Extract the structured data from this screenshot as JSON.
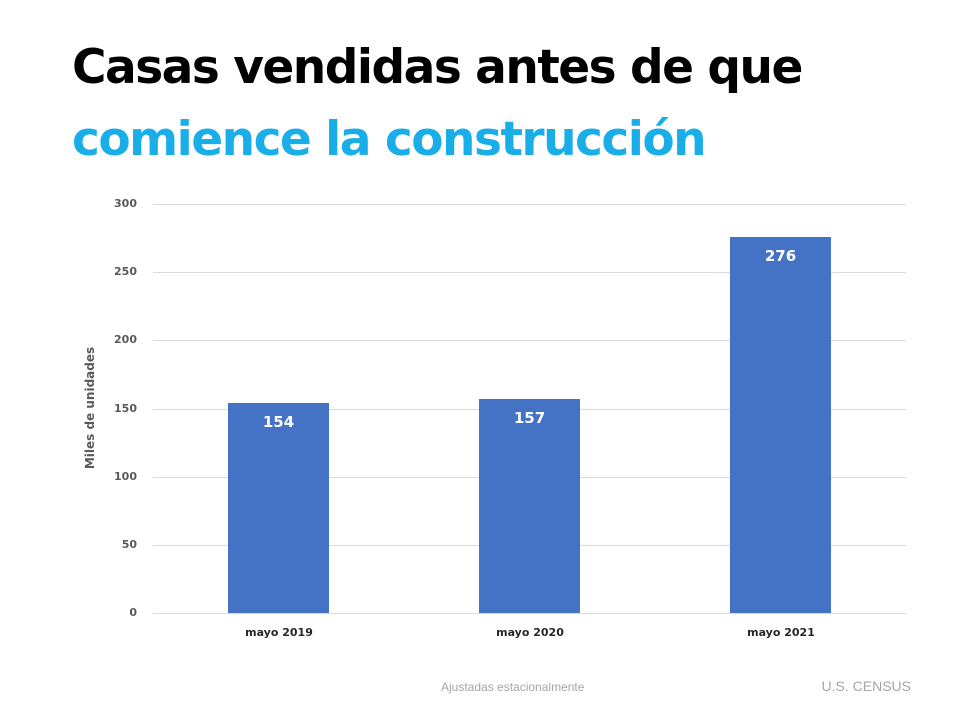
{
  "title": {
    "line1": "Casas vendidas antes de que",
    "line2": "comience la construcción",
    "line1_color": "#000000",
    "line2_color": "#1aaee8"
  },
  "footer": {
    "note": "Ajustadas estacionalmente",
    "source": "U.S. CENSUS"
  },
  "chart_data": {
    "type": "bar",
    "title": "Casas vendidas antes de que comience la construcción",
    "categories": [
      "mayo 2019",
      "mayo 2020",
      "mayo 2021"
    ],
    "values": [
      154,
      157,
      276
    ],
    "value_labels": [
      "154",
      "157",
      "276"
    ],
    "xlabel": "",
    "ylabel": "Miles de unidades",
    "ylim": [
      0,
      300
    ],
    "yticks": [
      0,
      50,
      100,
      150,
      200,
      250,
      300
    ],
    "ytick_labels": [
      "0",
      "50",
      "100",
      "150",
      "200",
      "250",
      "300"
    ],
    "grid": true,
    "legend": null,
    "bar_color": "#4472c4",
    "data_labels_inside_end": true
  }
}
